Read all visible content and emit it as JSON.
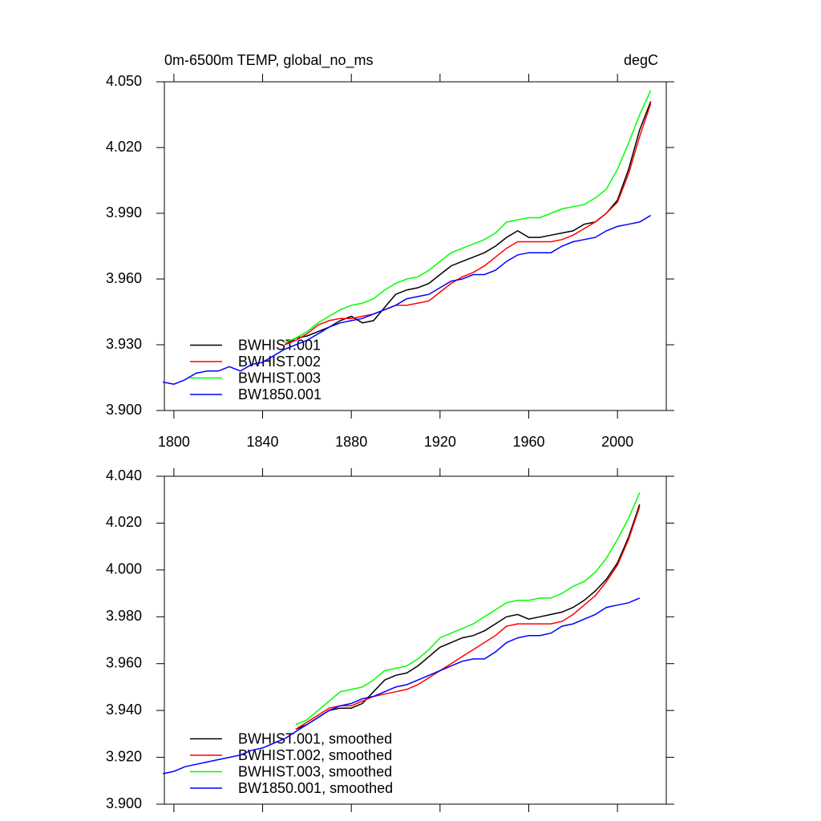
{
  "chart_data": [
    {
      "type": "line",
      "title": "0m-6500m TEMP, global_no_ms",
      "units": "degC",
      "legend": "lower left",
      "x": [
        1795,
        1800,
        1805,
        1810,
        1815,
        1820,
        1825,
        1830,
        1835,
        1840,
        1845,
        1850,
        1855,
        1860,
        1865,
        1870,
        1875,
        1880,
        1885,
        1890,
        1895,
        1900,
        1905,
        1910,
        1915,
        1920,
        1925,
        1930,
        1935,
        1940,
        1945,
        1950,
        1955,
        1960,
        1965,
        1970,
        1975,
        1980,
        1985,
        1990,
        1995,
        2000,
        2005,
        2010,
        2015
      ],
      "xlim": [
        1795.7,
        2022
      ],
      "xticks": [
        1800,
        1840,
        1880,
        1920,
        1960,
        2000
      ],
      "ylim": [
        3.9,
        4.05
      ],
      "yticks": [
        {
          "value": 3.9,
          "label": "3.900"
        },
        {
          "value": 3.93,
          "label": "3.930"
        },
        {
          "value": 3.96,
          "label": "3.960"
        },
        {
          "value": 3.99,
          "label": "3.990"
        },
        {
          "value": 4.02,
          "label": "4.020"
        },
        {
          "value": 4.05,
          "label": "4.050"
        }
      ],
      "series": [
        {
          "name": "BWHIST.001",
          "color": "#000000",
          "values": [
            null,
            null,
            null,
            null,
            null,
            null,
            null,
            null,
            null,
            null,
            null,
            3.93,
            3.933,
            3.934,
            3.936,
            3.938,
            3.941,
            3.943,
            3.94,
            3.941,
            3.947,
            3.953,
            3.955,
            3.956,
            3.958,
            3.962,
            3.966,
            3.968,
            3.97,
            3.972,
            3.975,
            3.979,
            3.982,
            3.979,
            3.979,
            3.98,
            3.981,
            3.982,
            3.985,
            3.986,
            3.99,
            3.996,
            4.01,
            4.028,
            4.041
          ]
        },
        {
          "name": "BWHIST.002",
          "color": "#ff0000",
          "values": [
            null,
            null,
            null,
            null,
            null,
            null,
            null,
            null,
            null,
            null,
            null,
            3.93,
            3.932,
            3.935,
            3.939,
            3.941,
            3.942,
            3.942,
            3.943,
            3.944,
            3.946,
            3.948,
            3.948,
            3.949,
            3.95,
            3.954,
            3.958,
            3.961,
            3.963,
            3.966,
            3.97,
            3.974,
            3.977,
            3.977,
            3.977,
            3.977,
            3.978,
            3.98,
            3.983,
            3.986,
            3.99,
            3.995,
            4.008,
            4.025,
            4.04
          ]
        },
        {
          "name": "BWHIST.003",
          "color": "#00ff00",
          "values": [
            null,
            null,
            null,
            null,
            null,
            null,
            null,
            null,
            null,
            null,
            null,
            3.931,
            3.933,
            3.936,
            3.94,
            3.943,
            3.946,
            3.948,
            3.949,
            3.951,
            3.955,
            3.958,
            3.96,
            3.961,
            3.964,
            3.968,
            3.972,
            3.974,
            3.976,
            3.978,
            3.981,
            3.986,
            3.987,
            3.988,
            3.988,
            3.99,
            3.992,
            3.993,
            3.994,
            3.997,
            4.001,
            4.01,
            4.022,
            4.035,
            4.046
          ]
        },
        {
          "name": "BW1850.001",
          "color": "#0000ff",
          "values": [
            3.913,
            3.912,
            3.914,
            3.917,
            3.918,
            3.918,
            3.92,
            3.918,
            3.921,
            3.922,
            3.925,
            3.928,
            3.93,
            3.932,
            3.935,
            3.938,
            3.94,
            3.941,
            3.942,
            3.944,
            3.946,
            3.948,
            3.951,
            3.952,
            3.953,
            3.956,
            3.959,
            3.96,
            3.962,
            3.962,
            3.964,
            3.968,
            3.971,
            3.972,
            3.972,
            3.972,
            3.975,
            3.977,
            3.978,
            3.979,
            3.982,
            3.984,
            3.985,
            3.986,
            3.989
          ]
        }
      ]
    },
    {
      "type": "line",
      "legend": "lower left",
      "x": [
        1795,
        1800,
        1805,
        1810,
        1815,
        1820,
        1825,
        1830,
        1835,
        1840,
        1845,
        1850,
        1855,
        1860,
        1865,
        1870,
        1875,
        1880,
        1885,
        1890,
        1895,
        1900,
        1905,
        1910,
        1915,
        1920,
        1925,
        1930,
        1935,
        1940,
        1945,
        1950,
        1955,
        1960,
        1965,
        1970,
        1975,
        1980,
        1985,
        1990,
        1995,
        2000,
        2005,
        2010
      ],
      "xlim": [
        1795.7,
        2022
      ],
      "xticks": [
        1800,
        1840,
        1880,
        1920,
        1960,
        2000
      ],
      "ylim": [
        3.9,
        4.04
      ],
      "yticks": [
        {
          "value": 3.9,
          "label": "3.900"
        },
        {
          "value": 3.92,
          "label": "3.920"
        },
        {
          "value": 3.94,
          "label": "3.940"
        },
        {
          "value": 3.96,
          "label": "3.960"
        },
        {
          "value": 3.98,
          "label": "3.980"
        },
        {
          "value": 4.0,
          "label": "4.000"
        },
        {
          "value": 4.02,
          "label": "4.020"
        },
        {
          "value": 4.04,
          "label": "4.040"
        }
      ],
      "series": [
        {
          "name": "BWHIST.001, smoothed",
          "color": "#000000",
          "values": [
            null,
            null,
            null,
            null,
            null,
            null,
            null,
            null,
            null,
            null,
            null,
            null,
            3.932,
            3.934,
            3.937,
            3.94,
            3.941,
            3.941,
            3.943,
            3.948,
            3.953,
            3.955,
            3.956,
            3.959,
            3.963,
            3.967,
            3.969,
            3.971,
            3.972,
            3.974,
            3.977,
            3.98,
            3.981,
            3.979,
            3.98,
            3.981,
            3.982,
            3.984,
            3.987,
            3.991,
            3.996,
            4.003,
            4.014,
            4.028
          ]
        },
        {
          "name": "BWHIST.002, smoothed",
          "color": "#ff0000",
          "values": [
            null,
            null,
            null,
            null,
            null,
            null,
            null,
            null,
            null,
            null,
            null,
            null,
            3.932,
            3.935,
            3.938,
            3.941,
            3.942,
            3.942,
            3.944,
            3.946,
            3.947,
            3.948,
            3.949,
            3.951,
            3.954,
            3.957,
            3.96,
            3.963,
            3.966,
            3.969,
            3.972,
            3.976,
            3.977,
            3.977,
            3.977,
            3.977,
            3.978,
            3.981,
            3.985,
            3.989,
            3.995,
            4.002,
            4.013,
            4.027
          ]
        },
        {
          "name": "BWHIST.003, smoothed",
          "color": "#00ff00",
          "values": [
            null,
            null,
            null,
            null,
            null,
            null,
            null,
            null,
            null,
            null,
            null,
            null,
            3.934,
            3.936,
            3.94,
            3.944,
            3.948,
            3.949,
            3.95,
            3.953,
            3.957,
            3.958,
            3.959,
            3.962,
            3.966,
            3.971,
            3.973,
            3.975,
            3.977,
            3.98,
            3.983,
            3.986,
            3.987,
            3.987,
            3.988,
            3.988,
            3.99,
            3.993,
            3.995,
            3.999,
            4.005,
            4.013,
            4.022,
            4.033
          ]
        },
        {
          "name": "BW1850.001, smoothed",
          "color": "#0000ff",
          "values": [
            3.913,
            3.914,
            3.916,
            3.917,
            3.918,
            3.919,
            3.92,
            3.921,
            3.923,
            3.924,
            3.926,
            3.928,
            3.931,
            3.934,
            3.937,
            3.94,
            3.942,
            3.943,
            3.945,
            3.946,
            3.948,
            3.95,
            3.951,
            3.953,
            3.955,
            3.957,
            3.959,
            3.961,
            3.962,
            3.962,
            3.965,
            3.969,
            3.971,
            3.972,
            3.972,
            3.973,
            3.976,
            3.977,
            3.979,
            3.981,
            3.984,
            3.985,
            3.986,
            3.988
          ]
        }
      ]
    }
  ]
}
